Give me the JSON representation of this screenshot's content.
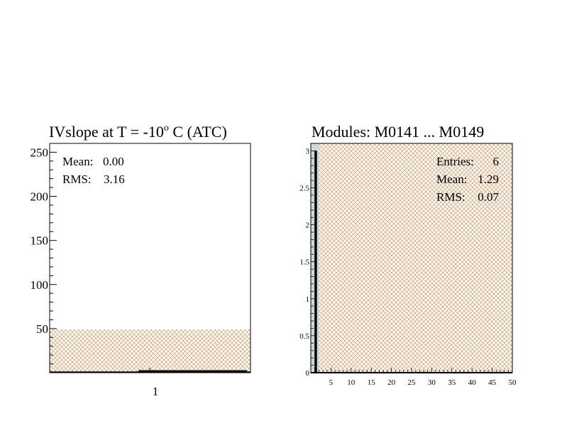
{
  "left_panel": {
    "title_prefix": "IVslope at T =  -10",
    "title_superscript": "o",
    "title_suffix": " C (ATC)",
    "stats": [
      {
        "label": "Mean:",
        "value": "0.00"
      },
      {
        "label": "RMS:",
        "value": "3.16"
      }
    ]
  },
  "right_panel": {
    "title": "Modules:  M0141 ... M0149",
    "stats": [
      {
        "label": "Entries:",
        "value": "6"
      },
      {
        "label": "Mean:",
        "value": "1.29"
      },
      {
        "label": "RMS:",
        "value": "0.07"
      }
    ]
  },
  "colors": {
    "hatch": "#d9a878",
    "frame": "#000000",
    "band": "#bcd6d6"
  },
  "chart_data": [
    {
      "type": "bar",
      "title": "IVslope at T =  -10o C (ATC)",
      "xlabel": "",
      "ylabel": "",
      "x_tick_labels": [
        "1"
      ],
      "y_tick_labels": [
        "50",
        "100",
        "150",
        "200",
        "250"
      ],
      "ylim": [
        0,
        260
      ],
      "hatched_band": [
        0,
        50
      ],
      "series": [
        {
          "values": [
            2
          ]
        }
      ],
      "stats": {
        "Mean": 0.0,
        "RMS": 3.16
      }
    },
    {
      "type": "bar",
      "title": "Modules:  M0141 ... M0149",
      "xlabel": "",
      "ylabel": "",
      "x_tick_labels": [
        "5",
        "10",
        "15",
        "20",
        "25",
        "30",
        "35",
        "40",
        "45",
        "50"
      ],
      "y_tick_labels": [
        "0",
        "0.5",
        "1",
        "1.5",
        "2",
        "2.5",
        "3"
      ],
      "xlim": [
        0,
        50
      ],
      "ylim": [
        0,
        3.1
      ],
      "categories": [
        1
      ],
      "values": [
        3
      ],
      "stats": {
        "Entries": 6,
        "Mean": 1.29,
        "RMS": 0.07
      }
    }
  ]
}
